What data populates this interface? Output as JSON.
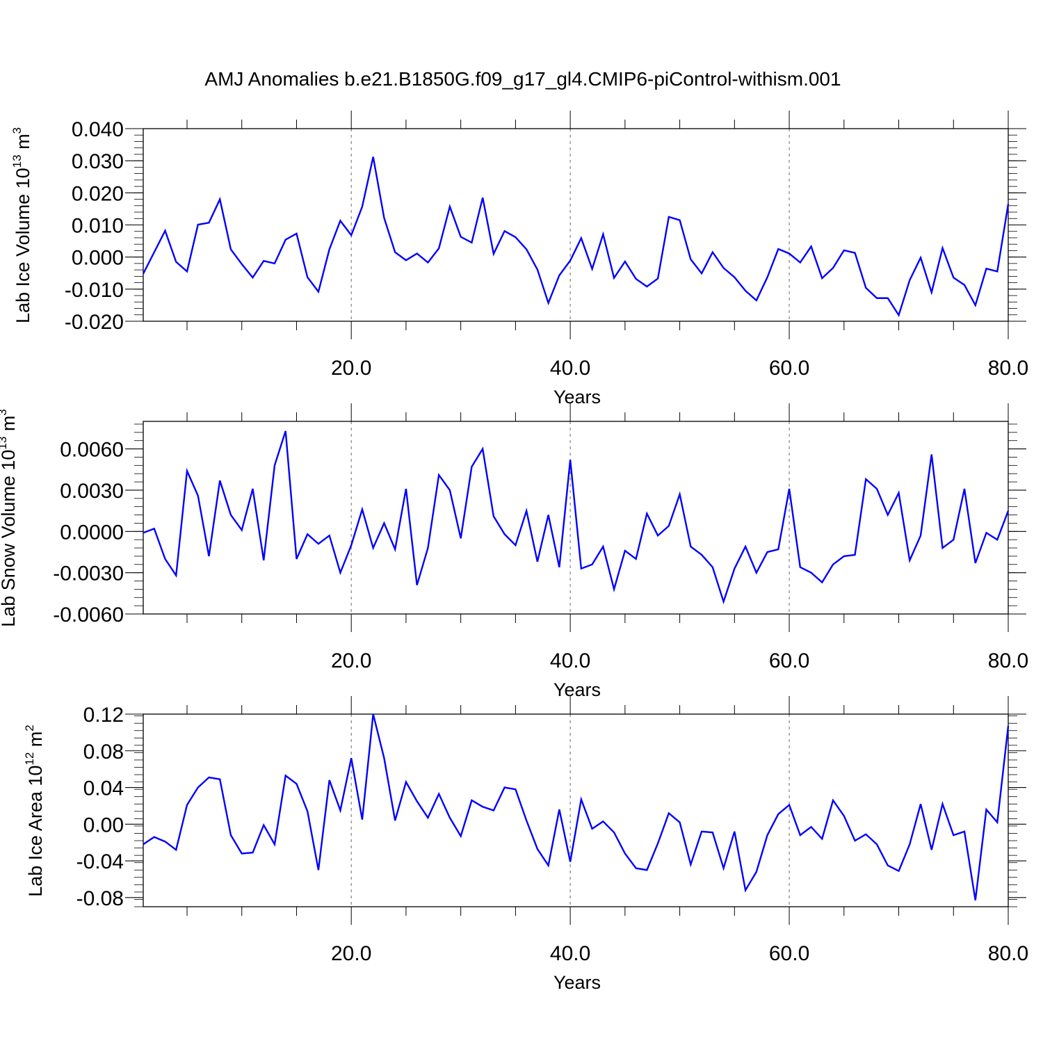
{
  "figure_title": "AMJ Anomalies b.e21.B1850G.f09_g17_gl4.CMIP6-piControl-withism.001",
  "colors": {
    "line": "#0000ff",
    "axis": "#000000",
    "grid": "#808080"
  },
  "chart_data": [
    {
      "type": "line",
      "ylabel": {
        "main": "Lab Ice Volume 10",
        "exp": "13",
        "unit": " m",
        "unit_exp": "3"
      },
      "xlabel": "Years",
      "xlim": [
        1,
        80
      ],
      "ylim": [
        -0.02,
        0.04
      ],
      "x_ticks": [
        20,
        40,
        60,
        80
      ],
      "x_tick_labels": [
        "20.0",
        "40.0",
        "60.0",
        "80.0"
      ],
      "y_ticks": [
        -0.02,
        -0.01,
        0.0,
        0.01,
        0.02,
        0.03,
        0.04
      ],
      "y_tick_labels": [
        "-0.020",
        "-0.010",
        "0.000",
        "0.010",
        "0.020",
        "0.030",
        "0.040"
      ],
      "y_minor_step": 0.002,
      "grid": "dashed vertical at major x ticks",
      "series": [
        {
          "values": [
            -0.0052,
            0.0015,
            0.0082,
            -0.0015,
            -0.0045,
            0.0101,
            0.0107,
            0.018,
            0.0024,
            -0.0022,
            -0.0064,
            -0.0012,
            -0.002,
            0.0054,
            0.0073,
            -0.0063,
            -0.0108,
            0.0024,
            0.0113,
            0.0068,
            0.0157,
            0.0312,
            0.0122,
            0.0015,
            -0.001,
            0.0011,
            -0.0017,
            0.0027,
            0.0157,
            0.0063,
            0.0045,
            0.0185,
            0.001,
            0.0081,
            0.0062,
            0.0024,
            -0.0039,
            -0.0143,
            -0.0057,
            -0.0011,
            0.0059,
            -0.0037,
            0.0071,
            -0.0065,
            -0.0014,
            -0.0068,
            -0.0092,
            -0.0067,
            0.0125,
            0.0115,
            -0.0007,
            -0.0051,
            0.0015,
            -0.0034,
            -0.0063,
            -0.0105,
            -0.0135,
            -0.0063,
            0.0025,
            0.0011,
            -0.0017,
            0.0033,
            -0.0066,
            -0.0034,
            0.0021,
            0.0013,
            -0.0096,
            -0.0128,
            -0.0128,
            -0.0181,
            -0.0072,
            -0.0002,
            -0.011,
            0.0028,
            -0.0064,
            -0.0087,
            -0.015,
            -0.0036,
            -0.0045,
            0.0165
          ]
        }
      ]
    },
    {
      "type": "line",
      "ylabel": {
        "main": "Lab Snow Volume 10",
        "exp": "13",
        "unit": " m",
        "unit_exp": "3"
      },
      "xlabel": "Years",
      "xlim": [
        1,
        80
      ],
      "ylim": [
        -0.006,
        0.008
      ],
      "x_ticks": [
        20,
        40,
        60,
        80
      ],
      "x_tick_labels": [
        "20.0",
        "40.0",
        "60.0",
        "80.0"
      ],
      "y_ticks": [
        -0.006,
        -0.003,
        0.0,
        0.003,
        0.006
      ],
      "y_tick_labels": [
        "-0.0060",
        "-0.0030",
        "0.0000",
        "0.0030",
        "0.0060"
      ],
      "y_minor_step": 0.0006,
      "grid": "dashed vertical at major x ticks",
      "series": [
        {
          "values": [
            -0.0001,
            0.0002,
            -0.002,
            -0.0032,
            0.0044,
            0.0026,
            -0.0018,
            0.0037,
            0.0012,
            0.0001,
            0.0031,
            -0.0021,
            0.0048,
            0.0073,
            -0.002,
            -0.0002,
            -0.0009,
            -0.0003,
            -0.003,
            -0.001,
            0.0016,
            -0.0012,
            0.0006,
            -0.0013,
            0.0031,
            -0.0039,
            -0.0012,
            0.0041,
            0.003,
            -0.0005,
            0.0047,
            0.006,
            0.0011,
            -0.0002,
            -0.001,
            0.0015,
            -0.0022,
            0.0012,
            -0.0026,
            0.0052,
            -0.0027,
            -0.0024,
            -0.0011,
            -0.0042,
            -0.0014,
            -0.002,
            0.0013,
            -0.0003,
            0.0004,
            0.0027,
            -0.0011,
            -0.0017,
            -0.0026,
            -0.0051,
            -0.0027,
            -0.0011,
            -0.003,
            -0.0015,
            -0.0013,
            0.0031,
            -0.0026,
            -0.003,
            -0.0037,
            -0.0024,
            -0.0018,
            -0.0017,
            0.0038,
            0.0031,
            0.0012,
            0.0028,
            -0.0021,
            -0.0003,
            0.0056,
            -0.0012,
            -0.0006,
            0.0031,
            -0.0023,
            -0.0001,
            -0.0006,
            0.0015
          ]
        }
      ]
    },
    {
      "type": "line",
      "ylabel": {
        "main": "Lab Ice Area 10",
        "exp": "12",
        "unit": " m",
        "unit_exp": "2"
      },
      "xlabel": "Years",
      "xlim": [
        1,
        80
      ],
      "ylim": [
        -0.09,
        0.12
      ],
      "x_ticks": [
        20,
        40,
        60,
        80
      ],
      "x_tick_labels": [
        "20.0",
        "40.0",
        "60.0",
        "80.0"
      ],
      "y_ticks": [
        -0.08,
        -0.04,
        0.0,
        0.04,
        0.08,
        0.12
      ],
      "y_tick_labels": [
        "-0.08",
        "-0.04",
        "0.00",
        "0.04",
        "0.08",
        "0.12"
      ],
      "y_minor_step": 0.008,
      "grid": "dashed vertical at major x ticks",
      "series": [
        {
          "values": [
            -0.022,
            -0.014,
            -0.019,
            -0.028,
            0.021,
            0.04,
            0.051,
            0.049,
            -0.012,
            -0.032,
            -0.031,
            -0.001,
            -0.022,
            0.053,
            0.044,
            0.014,
            -0.05,
            0.048,
            0.015,
            0.072,
            0.005,
            0.12,
            0.072,
            0.004,
            0.046,
            0.025,
            0.007,
            0.033,
            0.007,
            -0.013,
            0.026,
            0.019,
            0.015,
            0.04,
            0.038,
            0.004,
            -0.027,
            -0.045,
            0.016,
            -0.041,
            0.027,
            -0.005,
            0.003,
            -0.009,
            -0.032,
            -0.048,
            -0.05,
            -0.021,
            0.012,
            0.002,
            -0.044,
            -0.008,
            -0.009,
            -0.048,
            -0.008,
            -0.072,
            -0.052,
            -0.012,
            0.011,
            0.021,
            -0.012,
            -0.003,
            -0.016,
            0.026,
            0.009,
            -0.018,
            -0.011,
            -0.022,
            -0.045,
            -0.051,
            -0.022,
            0.022,
            -0.028,
            0.022,
            -0.012,
            -0.008,
            -0.083,
            0.016,
            0.002,
            0.107
          ]
        }
      ]
    }
  ]
}
